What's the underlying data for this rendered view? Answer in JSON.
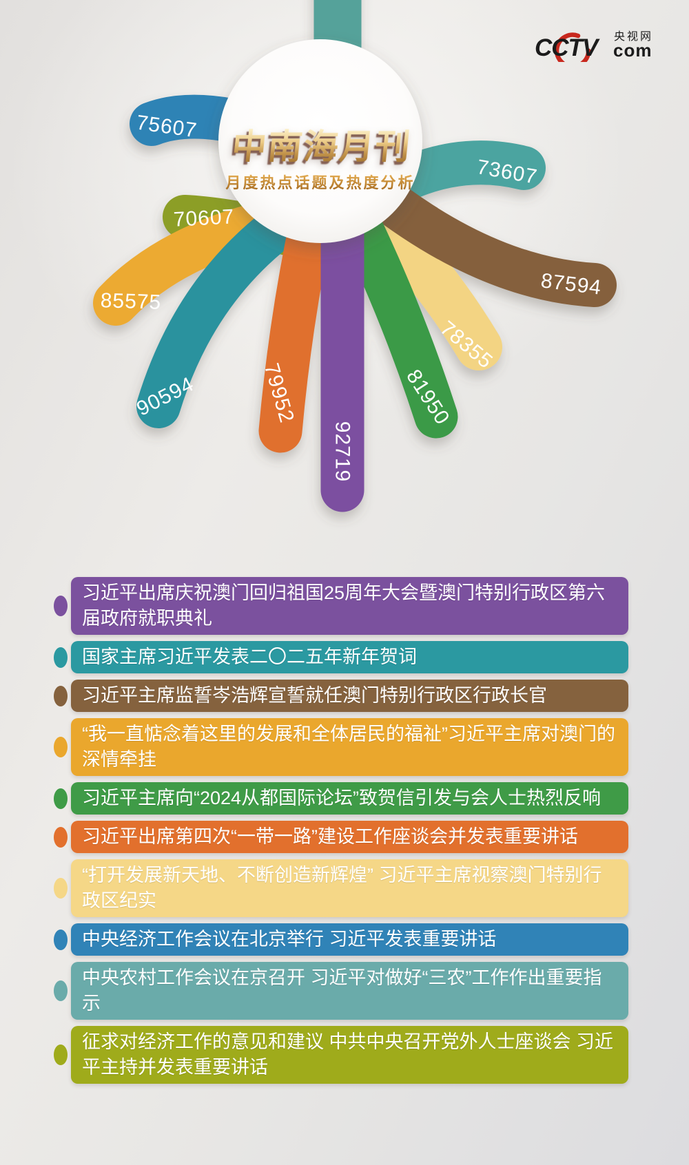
{
  "logo": {
    "brand": "CCTV",
    "site": "央视网",
    "suffix": "com",
    "red": "#c8281e",
    "ink": "#1b1b1b"
  },
  "header": {
    "title": "中南海月刊",
    "subtitle": "月度热点话题及热度分析"
  },
  "chart_data": {
    "type": "bar",
    "variant": "radial-petal-flower",
    "title": "中南海月刊",
    "subtitle": "月度热点话题及热度分析",
    "legend_position": "none",
    "grid": false,
    "value_range": [
      70607,
      92719
    ],
    "petals": [
      {
        "label": "",
        "value": null,
        "color": "#55a29a",
        "note": "petal cut off at top edge, no visible value"
      },
      {
        "label": "75607",
        "value": 75607,
        "color": "#2e83b5"
      },
      {
        "label": "73607",
        "value": 73607,
        "color": "#4ba4a0"
      },
      {
        "label": "70607",
        "value": 70607,
        "color": "#8c9e28"
      },
      {
        "label": "85575",
        "value": 85575,
        "color": "#ecaa31"
      },
      {
        "label": "78355",
        "value": 78355,
        "color": "#f3d483"
      },
      {
        "label": "87594",
        "value": 87594,
        "color": "#85613c"
      },
      {
        "label": "90594",
        "value": 90594,
        "color": "#2b929e"
      },
      {
        "label": "79952",
        "value": 79952,
        "color": "#e0702e"
      },
      {
        "label": "81950",
        "value": 81950,
        "color": "#3b9a46"
      },
      {
        "label": "92719",
        "value": 92719,
        "color": "#7b4fa0"
      }
    ]
  },
  "topics": [
    {
      "color": "#7b519e",
      "text": "习近平出席庆祝澳门回归祖国25周年大会暨澳门特别行政区第六届政府就职典礼"
    },
    {
      "color": "#2b99a1",
      "text": "国家主席习近平发表二〇二五年新年贺词"
    },
    {
      "color": "#85623e",
      "text": "习近平主席监誓岑浩辉宣誓就任澳门特别行政区行政长官"
    },
    {
      "color": "#eaa72d",
      "text": "“我一直惦念着这里的发展和全体居民的福祉”习近平主席对澳门的深情牵挂"
    },
    {
      "color": "#3f9b47",
      "text": "习近平主席向“2024从都国际论坛”致贺信引发与会人士热烈反响"
    },
    {
      "color": "#e2702d",
      "text": "习近平出席第四次“一带一路”建设工作座谈会并发表重要讲话"
    },
    {
      "color": "#f5d787",
      "text": "“打开发展新天地、不断创造新辉煌” 习近平主席视察澳门特别行政区纪实"
    },
    {
      "color": "#3083b7",
      "text": "中央经济工作会议在北京举行 习近平发表重要讲话"
    },
    {
      "color": "#6aabaa",
      "text": "中央农村工作会议在京召开 习近平对做好“三农”工作作出重要指示"
    },
    {
      "color": "#9fab1b",
      "text": "征求对经济工作的意见和建议 中共中央召开党外人士座谈会 习近平主持并发表重要讲话"
    }
  ]
}
